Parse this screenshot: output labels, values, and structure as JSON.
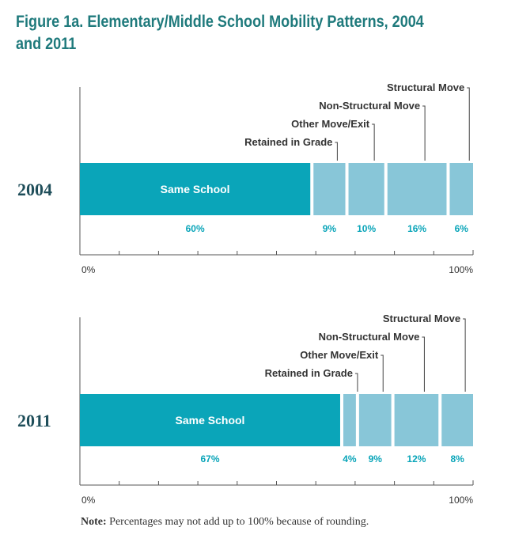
{
  "title": "Figure 1a. Elementary/Middle School Mobility Patterns, 2004 and 2011",
  "note": {
    "label": "Note:",
    "text": "Percentages may not add up to 100% because of rounding."
  },
  "colors": {
    "title": "#1f7a7c",
    "same_school": "#0aa5b9",
    "other_segments": "#88c6d8",
    "value_labels": "#0aa5b9",
    "axis": "#555555",
    "year_labels": "#1f4e5a"
  },
  "chart_data": [
    {
      "type": "bar",
      "stacked": true,
      "orientation": "horizontal",
      "year": "2004",
      "categories": [
        "Same School",
        "Retained in Grade",
        "Other Move/Exit",
        "Non-Structural Move",
        "Structural Move"
      ],
      "values": [
        60,
        9,
        10,
        16,
        6
      ],
      "value_labels": [
        "60%",
        "9%",
        "10%",
        "16%",
        "6%"
      ],
      "xlim": [
        0,
        100
      ],
      "axis_labels": [
        "0%",
        "100%"
      ]
    },
    {
      "type": "bar",
      "stacked": true,
      "orientation": "horizontal",
      "year": "2011",
      "categories": [
        "Same School",
        "Retained in Grade",
        "Other Move/Exit",
        "Non-Structural Move",
        "Structural Move"
      ],
      "values": [
        67,
        4,
        9,
        12,
        8
      ],
      "value_labels": [
        "67%",
        "4%",
        "9%",
        "12%",
        "8%"
      ],
      "xlim": [
        0,
        100
      ],
      "axis_labels": [
        "0%",
        "100%"
      ]
    }
  ]
}
